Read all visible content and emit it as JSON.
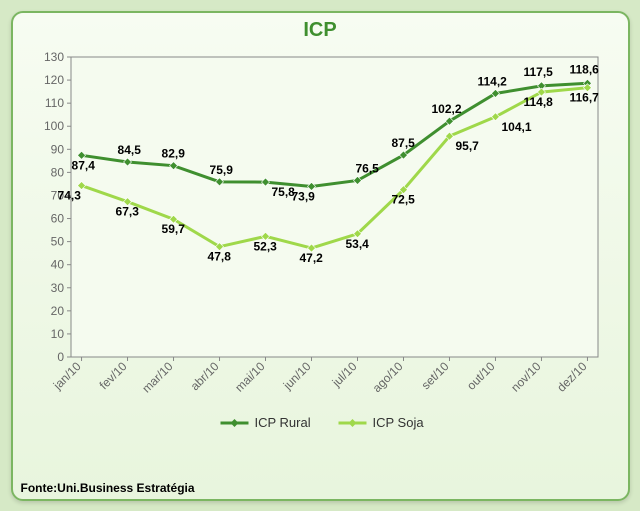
{
  "title": "ICP",
  "source_label": "Fonte:Uni.Business Estratégia",
  "chart": {
    "type": "line",
    "categories": [
      "jan/10",
      "fev/10",
      "mar/10",
      "abr/10",
      "mai/10",
      "jun/10",
      "jul/10",
      "ago/10",
      "set/10",
      "out/10",
      "nov/10",
      "dez/10"
    ],
    "series": [
      {
        "name": "ICP Rural",
        "values": [
          87.4,
          84.5,
          82.9,
          75.9,
          75.8,
          73.9,
          76.5,
          87.5,
          102.2,
          114.2,
          117.5,
          118.6
        ],
        "color": "#3f8f2f",
        "marker": "diamond"
      },
      {
        "name": "ICP Soja",
        "values": [
          74.3,
          67.3,
          59.7,
          47.8,
          52.3,
          47.2,
          53.4,
          72.5,
          95.7,
          104.1,
          114.8,
          116.7
        ],
        "color": "#9fd84a",
        "marker": "diamond"
      }
    ],
    "ylim": [
      0,
      130
    ],
    "ytick_step": 10,
    "line_width": 3,
    "marker_size": 8,
    "label_fontsize": 12,
    "label_weight": "bold",
    "label_color": "#000000",
    "axis_fontsize": 12,
    "tick_color": "#666666",
    "axis_color": "#888888",
    "grid_color": "#dddddd",
    "grid_on": false,
    "plot_bg": "#f5fbef"
  },
  "legend": {
    "position": "bottom",
    "items": [
      "ICP Rural",
      "ICP Soja"
    ]
  },
  "label_offsets": {
    "rural": [
      [
        -10,
        14
      ],
      [
        -10,
        -8
      ],
      [
        -12,
        -8
      ],
      [
        -10,
        -8
      ],
      [
        6,
        14
      ],
      [
        -20,
        14
      ],
      [
        -2,
        -8
      ],
      [
        -12,
        -8
      ],
      [
        -18,
        -8
      ],
      [
        -18,
        -8
      ],
      [
        -18,
        -10
      ],
      [
        -18,
        -10
      ]
    ],
    "soja": [
      [
        -24,
        14
      ],
      [
        -12,
        14
      ],
      [
        -12,
        14
      ],
      [
        -12,
        14
      ],
      [
        -12,
        14
      ],
      [
        -12,
        14
      ],
      [
        -12,
        14
      ],
      [
        -12,
        14
      ],
      [
        6,
        14
      ],
      [
        6,
        14
      ],
      [
        -18,
        14
      ],
      [
        -18,
        14
      ]
    ]
  }
}
